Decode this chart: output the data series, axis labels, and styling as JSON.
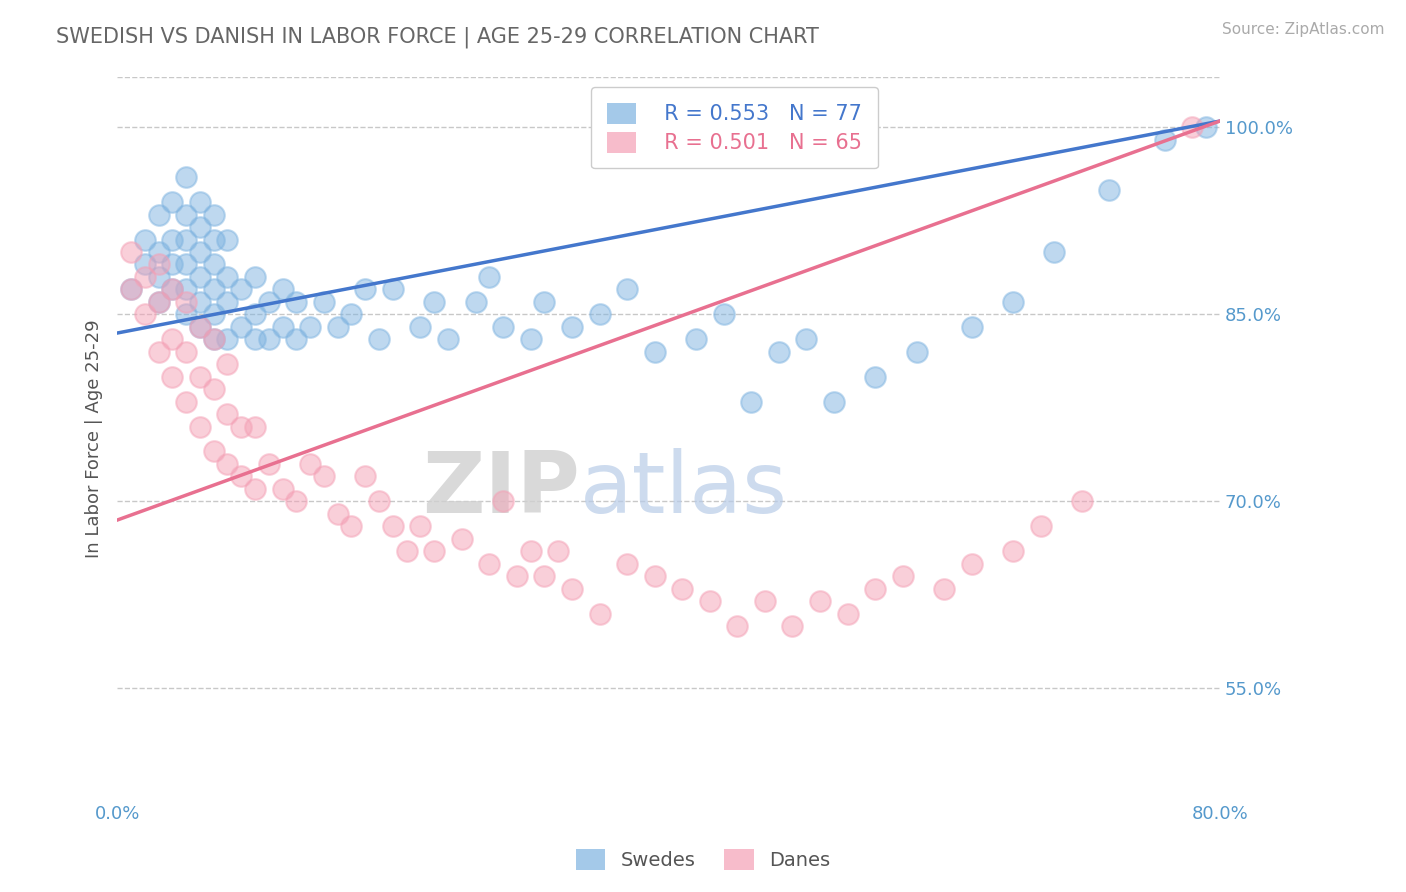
{
  "title": "SWEDISH VS DANISH IN LABOR FORCE | AGE 25-29 CORRELATION CHART",
  "source": "Source: ZipAtlas.com",
  "ylabel": "In Labor Force | Age 25-29",
  "xlim": [
    0.0,
    0.8
  ],
  "ylim": [
    0.46,
    1.04
  ],
  "yticks": [
    0.55,
    0.7,
    0.85,
    1.0
  ],
  "ytick_labels": [
    "55.0%",
    "70.0%",
    "85.0%",
    "100.0%"
  ],
  "xticks": [
    0.0,
    0.1,
    0.2,
    0.3,
    0.4,
    0.5,
    0.6,
    0.7,
    0.8
  ],
  "xtick_labels": [
    "0.0%",
    "",
    "",
    "",
    "",
    "",
    "",
    "",
    "80.0%"
  ],
  "swedish_color": "#7eb3e0",
  "danish_color": "#f4a0b5",
  "trend_swedish_color": "#4477cc",
  "trend_danish_color": "#e87090",
  "legend_R_swedish": "R = 0.553",
  "legend_N_swedish": "N = 77",
  "legend_R_danish": "R = 0.501",
  "legend_N_danish": "N = 65",
  "legend_label_swedish": "Swedes",
  "legend_label_danish": "Danes",
  "grid_color": "#c8c8c8",
  "background_color": "#ffffff",
  "title_color": "#666666",
  "axis_label_color": "#555555",
  "tick_color": "#5599cc",
  "watermark_zip": "ZIP",
  "watermark_atlas": "atlas",
  "swedish_x": [
    0.01,
    0.02,
    0.02,
    0.03,
    0.03,
    0.03,
    0.03,
    0.04,
    0.04,
    0.04,
    0.04,
    0.05,
    0.05,
    0.05,
    0.05,
    0.05,
    0.05,
    0.06,
    0.06,
    0.06,
    0.06,
    0.06,
    0.06,
    0.07,
    0.07,
    0.07,
    0.07,
    0.07,
    0.07,
    0.08,
    0.08,
    0.08,
    0.08,
    0.09,
    0.09,
    0.1,
    0.1,
    0.1,
    0.11,
    0.11,
    0.12,
    0.12,
    0.13,
    0.13,
    0.14,
    0.15,
    0.16,
    0.17,
    0.18,
    0.19,
    0.2,
    0.22,
    0.23,
    0.24,
    0.26,
    0.27,
    0.28,
    0.3,
    0.31,
    0.33,
    0.35,
    0.37,
    0.39,
    0.42,
    0.44,
    0.46,
    0.48,
    0.5,
    0.52,
    0.55,
    0.58,
    0.62,
    0.65,
    0.68,
    0.72,
    0.76,
    0.79
  ],
  "swedish_y": [
    0.87,
    0.89,
    0.91,
    0.86,
    0.88,
    0.9,
    0.93,
    0.87,
    0.89,
    0.91,
    0.94,
    0.85,
    0.87,
    0.89,
    0.91,
    0.93,
    0.96,
    0.84,
    0.86,
    0.88,
    0.9,
    0.92,
    0.94,
    0.83,
    0.85,
    0.87,
    0.89,
    0.91,
    0.93,
    0.83,
    0.86,
    0.88,
    0.91,
    0.84,
    0.87,
    0.83,
    0.85,
    0.88,
    0.83,
    0.86,
    0.84,
    0.87,
    0.83,
    0.86,
    0.84,
    0.86,
    0.84,
    0.85,
    0.87,
    0.83,
    0.87,
    0.84,
    0.86,
    0.83,
    0.86,
    0.88,
    0.84,
    0.83,
    0.86,
    0.84,
    0.85,
    0.87,
    0.82,
    0.83,
    0.85,
    0.78,
    0.82,
    0.83,
    0.78,
    0.8,
    0.82,
    0.84,
    0.86,
    0.9,
    0.95,
    0.99,
    1.0
  ],
  "danish_x": [
    0.01,
    0.01,
    0.02,
    0.02,
    0.03,
    0.03,
    0.03,
    0.04,
    0.04,
    0.04,
    0.05,
    0.05,
    0.05,
    0.06,
    0.06,
    0.06,
    0.07,
    0.07,
    0.07,
    0.08,
    0.08,
    0.08,
    0.09,
    0.09,
    0.1,
    0.1,
    0.11,
    0.12,
    0.13,
    0.14,
    0.15,
    0.16,
    0.17,
    0.18,
    0.19,
    0.2,
    0.21,
    0.22,
    0.23,
    0.25,
    0.27,
    0.28,
    0.29,
    0.3,
    0.31,
    0.32,
    0.33,
    0.35,
    0.37,
    0.39,
    0.41,
    0.43,
    0.45,
    0.47,
    0.49,
    0.51,
    0.53,
    0.55,
    0.57,
    0.6,
    0.62,
    0.65,
    0.67,
    0.7,
    0.78
  ],
  "danish_y": [
    0.87,
    0.9,
    0.85,
    0.88,
    0.82,
    0.86,
    0.89,
    0.8,
    0.83,
    0.87,
    0.78,
    0.82,
    0.86,
    0.76,
    0.8,
    0.84,
    0.74,
    0.79,
    0.83,
    0.73,
    0.77,
    0.81,
    0.72,
    0.76,
    0.71,
    0.76,
    0.73,
    0.71,
    0.7,
    0.73,
    0.72,
    0.69,
    0.68,
    0.72,
    0.7,
    0.68,
    0.66,
    0.68,
    0.66,
    0.67,
    0.65,
    0.7,
    0.64,
    0.66,
    0.64,
    0.66,
    0.63,
    0.61,
    0.65,
    0.64,
    0.63,
    0.62,
    0.6,
    0.62,
    0.6,
    0.62,
    0.61,
    0.63,
    0.64,
    0.63,
    0.65,
    0.66,
    0.68,
    0.7,
    1.0
  ]
}
